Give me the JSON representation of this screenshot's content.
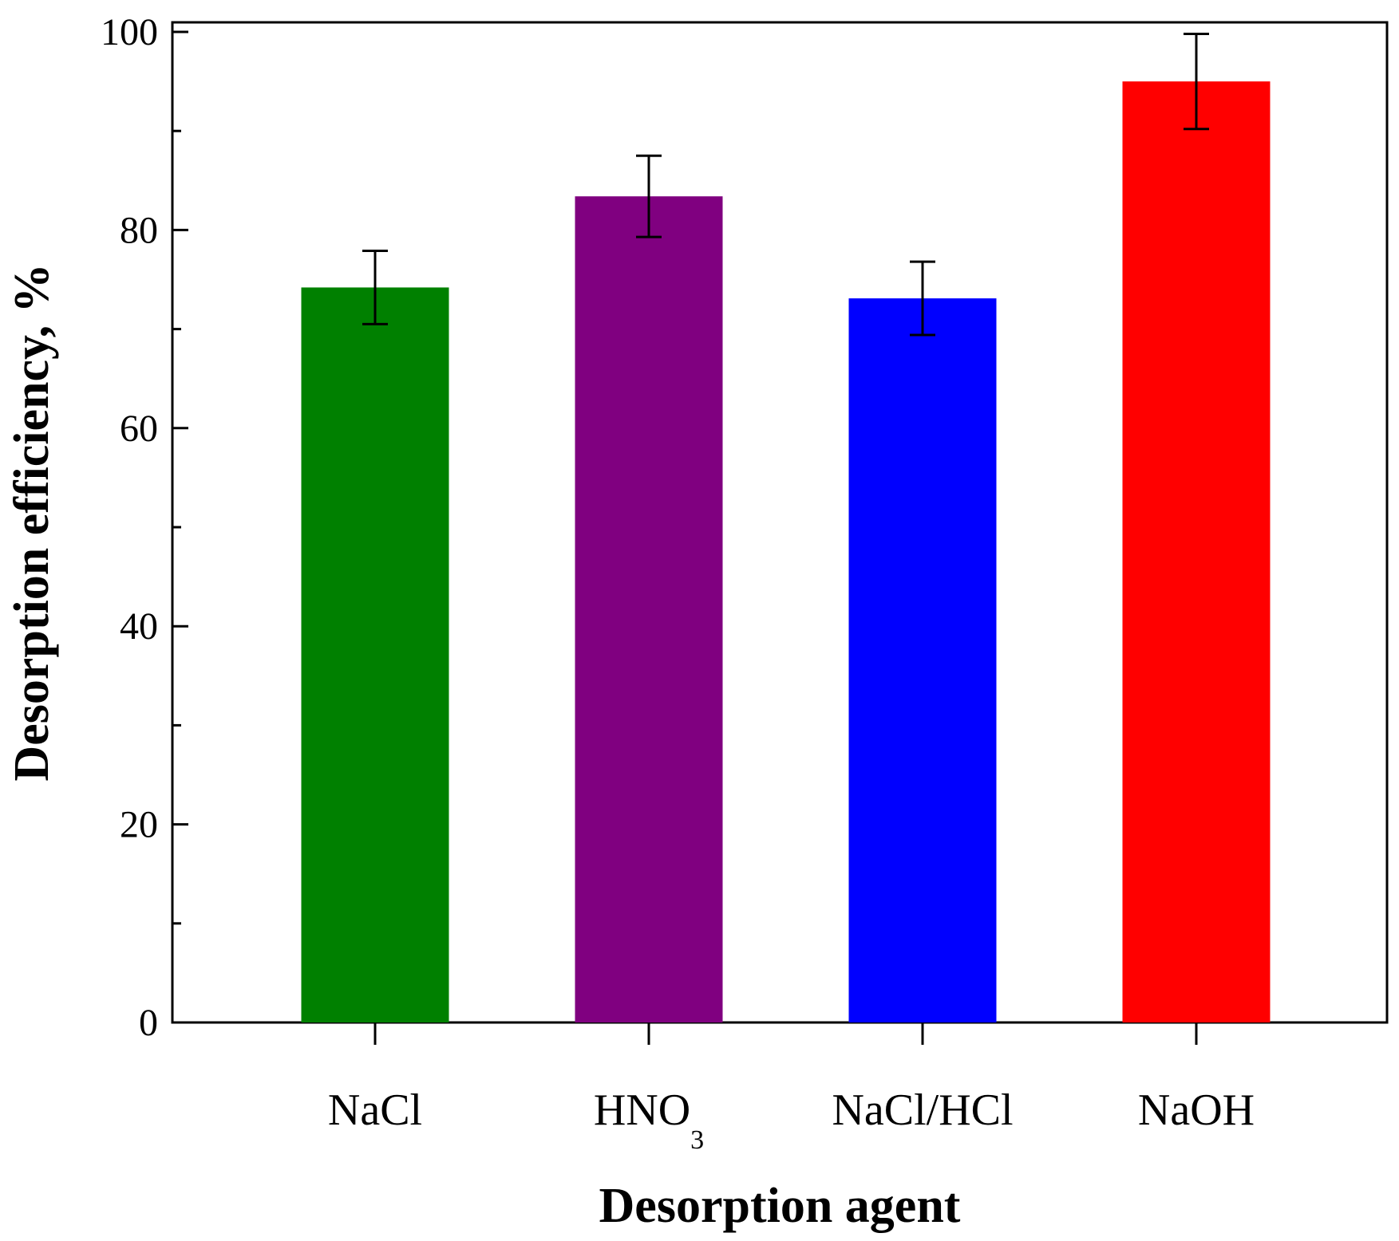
{
  "chart_data": {
    "type": "bar",
    "title": "",
    "xlabel": "Desorption agent",
    "ylabel": "Desorption efficiency, %",
    "ylim": [
      0,
      100
    ],
    "y_major_ticks": [
      0,
      20,
      40,
      60,
      80,
      100
    ],
    "y_minor_ticks": [
      10,
      30,
      50,
      70,
      90
    ],
    "grid": false,
    "categories": [
      {
        "label": "NaCl",
        "sub": ""
      },
      {
        "label": "HNO",
        "sub": "3"
      },
      {
        "label": "NaCl/HCl",
        "sub": ""
      },
      {
        "label": "NaOH",
        "sub": ""
      }
    ],
    "values": [
      74.2,
      83.4,
      73.1,
      95.0
    ],
    "errors": [
      3.7,
      4.1,
      3.7,
      4.8
    ],
    "colors": [
      "#008000",
      "#800080",
      "#0000ff",
      "#ff0000"
    ]
  }
}
